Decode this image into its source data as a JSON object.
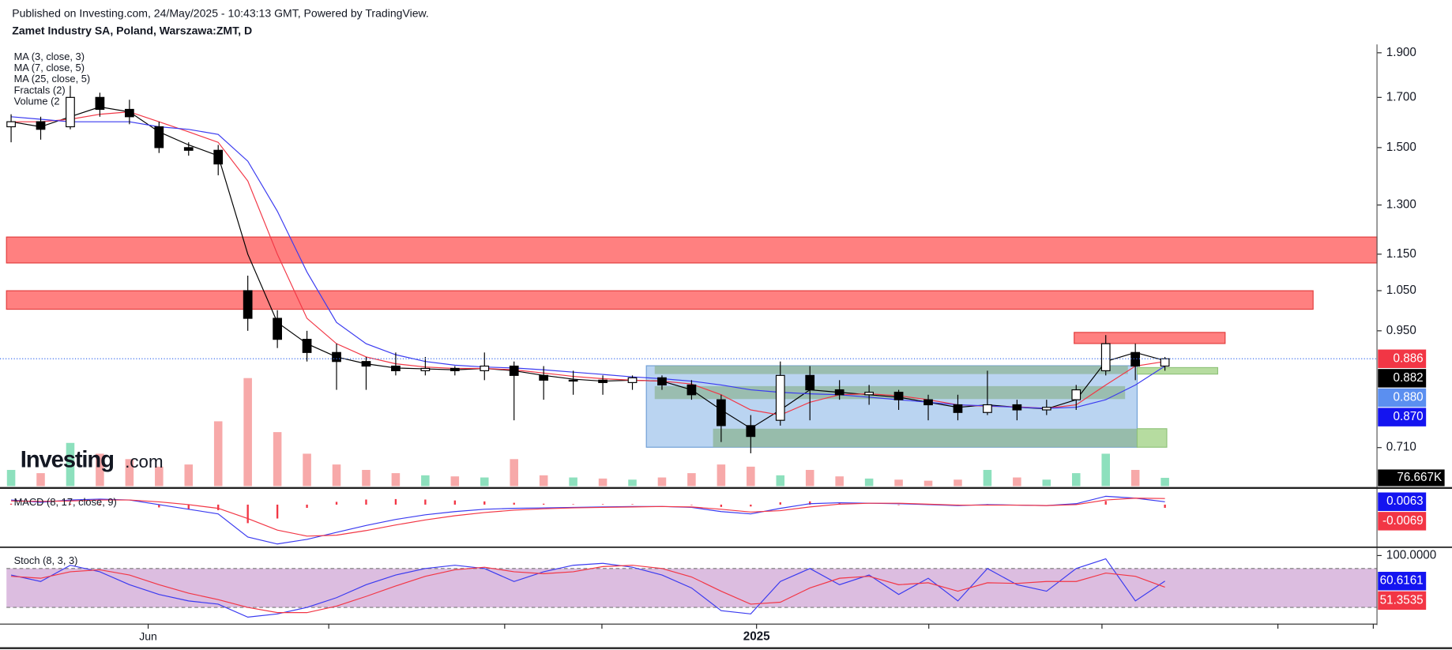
{
  "chart_data": {
    "type": "candlestick",
    "published": "Published on Investing.com, 24/May/2025 - 10:43:13 GMT, Powered by TradingView.",
    "title": "Zamet Industry SA, Poland, Warszawa:ZMT, D",
    "log_scale": true,
    "ylim": [
      0.645,
      1.931
    ],
    "yticks": [
      {
        "value": 0.71,
        "label": "0.710"
      },
      {
        "value": 0.95,
        "label": "0.950"
      },
      {
        "value": 1.05,
        "label": "1.050"
      },
      {
        "value": 1.15,
        "label": "1.150"
      },
      {
        "value": 1.3,
        "label": "1.300"
      },
      {
        "value": 1.5,
        "label": "1.500"
      },
      {
        "value": 1.7,
        "label": "1.700"
      },
      {
        "value": 1.9,
        "label": "1.900"
      }
    ],
    "x_labels": [
      "Jun",
      "2025"
    ],
    "up_color": "#ffffff",
    "down_color": "#000000",
    "ohlc": {
      "open": [
        1.58,
        1.6,
        1.58,
        1.7,
        1.65,
        1.58,
        1.5,
        1.49,
        1.05,
        0.98,
        0.93,
        0.9,
        0.88,
        0.87,
        0.86,
        0.865,
        0.86,
        0.87,
        0.85,
        0.84,
        0.84,
        0.835,
        0.845,
        0.83,
        0.8,
        0.75,
        0.76,
        0.85,
        0.82,
        0.81,
        0.815,
        0.8,
        0.79,
        0.775,
        0.79,
        0.78,
        0.8,
        0.86,
        0.9,
        0.87
      ],
      "high": [
        1.63,
        1.62,
        1.75,
        1.72,
        1.69,
        1.6,
        1.52,
        1.51,
        1.09,
        1.0,
        0.95,
        0.92,
        0.89,
        0.9,
        0.89,
        0.87,
        0.9,
        0.88,
        0.87,
        0.86,
        0.85,
        0.85,
        0.85,
        0.84,
        0.81,
        0.77,
        0.88,
        0.87,
        0.84,
        0.83,
        0.82,
        0.81,
        0.81,
        0.86,
        0.8,
        0.8,
        0.83,
        0.94,
        0.92,
        0.89
      ],
      "low": [
        1.52,
        1.53,
        1.57,
        1.62,
        1.59,
        1.48,
        1.47,
        1.4,
        0.95,
        0.91,
        0.88,
        0.82,
        0.82,
        0.85,
        0.85,
        0.85,
        0.84,
        0.76,
        0.8,
        0.81,
        0.81,
        0.82,
        0.82,
        0.8,
        0.72,
        0.7,
        0.75,
        0.76,
        0.8,
        0.79,
        0.78,
        0.76,
        0.76,
        0.77,
        0.76,
        0.77,
        0.78,
        0.85,
        0.84,
        0.86
      ],
      "close": [
        1.6,
        1.57,
        1.7,
        1.65,
        1.62,
        1.5,
        1.49,
        1.44,
        0.98,
        0.93,
        0.9,
        0.88,
        0.87,
        0.86,
        0.865,
        0.86,
        0.87,
        0.85,
        0.84,
        0.84,
        0.835,
        0.845,
        0.83,
        0.81,
        0.75,
        0.73,
        0.85,
        0.82,
        0.81,
        0.815,
        0.8,
        0.79,
        0.775,
        0.79,
        0.78,
        0.785,
        0.82,
        0.92,
        0.87,
        0.886
      ]
    },
    "ma_series": [
      {
        "name": "MA (3, close, 3)",
        "color": "#000000",
        "values": [
          1.6,
          1.58,
          1.62,
          1.66,
          1.64,
          1.56,
          1.51,
          1.47,
          1.15,
          0.97,
          0.92,
          0.89,
          0.875,
          0.866,
          0.864,
          0.862,
          0.865,
          0.86,
          0.85,
          0.842,
          0.838,
          0.84,
          0.838,
          0.82,
          0.78,
          0.745,
          0.78,
          0.82,
          0.815,
          0.81,
          0.805,
          0.795,
          0.785,
          0.79,
          0.785,
          0.782,
          0.8,
          0.88,
          0.9,
          0.882
        ]
      },
      {
        "name": "MA (7, close, 5)",
        "color": "#f23645",
        "values": [
          1.6,
          1.6,
          1.61,
          1.63,
          1.64,
          1.6,
          1.56,
          1.52,
          1.38,
          1.15,
          0.98,
          0.92,
          0.89,
          0.875,
          0.868,
          0.865,
          0.865,
          0.862,
          0.855,
          0.848,
          0.843,
          0.84,
          0.838,
          0.832,
          0.81,
          0.78,
          0.77,
          0.795,
          0.81,
          0.812,
          0.808,
          0.8,
          0.79,
          0.787,
          0.786,
          0.783,
          0.79,
          0.83,
          0.87,
          0.88
        ]
      },
      {
        "name": "MA (25, close, 5)",
        "color": "#3a3af0",
        "values": [
          1.62,
          1.61,
          1.6,
          1.6,
          1.6,
          1.58,
          1.57,
          1.55,
          1.45,
          1.28,
          1.1,
          0.97,
          0.92,
          0.895,
          0.88,
          0.872,
          0.868,
          0.866,
          0.862,
          0.857,
          0.852,
          0.847,
          0.843,
          0.838,
          0.83,
          0.82,
          0.815,
          0.812,
          0.81,
          0.805,
          0.8,
          0.795,
          0.79,
          0.788,
          0.785,
          0.783,
          0.785,
          0.8,
          0.83,
          0.87
        ]
      }
    ],
    "fractals_name": "Fractals (2)",
    "price_labels": [
      {
        "value": 0.886,
        "label": "0.886",
        "color": "#f23645"
      },
      {
        "value": 0.882,
        "label": "0.882",
        "color": "#000000"
      },
      {
        "value": 0.88,
        "label": "0.880",
        "color": "#5b8ff0"
      },
      {
        "value": 0.87,
        "label": "0.870",
        "color": "#1414f0"
      }
    ],
    "volume": {
      "name": "Volume (2",
      "vlim": [
        0,
        1500000
      ],
      "up_color": "#8de0bd",
      "down_color": "#f7a9a9",
      "values": [
        150000,
        120000,
        400000,
        300000,
        250000,
        180000,
        200000,
        600000,
        1000000,
        500000,
        300000,
        200000,
        150000,
        120000,
        100000,
        90000,
        80000,
        250000,
        100000,
        80000,
        70000,
        60000,
        80000,
        120000,
        200000,
        180000,
        100000,
        150000,
        90000,
        70000,
        60000,
        50000,
        60000,
        150000,
        80000,
        60000,
        120000,
        300000,
        150000,
        76667
      ],
      "last_label": {
        "value": 76667,
        "label": "76.667K"
      }
    },
    "macd": {
      "name": "MACD (8, 17, close, 9)",
      "mlim": [
        -0.09,
        0.03
      ],
      "macd_color": "#3a3af0",
      "signal_color": "#f23645",
      "macd": [
        0.01,
        0.005,
        0.01,
        0.012,
        0.01,
        0,
        -0.01,
        -0.02,
        -0.07,
        -0.085,
        -0.075,
        -0.06,
        -0.045,
        -0.032,
        -0.022,
        -0.015,
        -0.01,
        -0.008,
        -0.007,
        -0.006,
        -0.005,
        -0.004,
        -0.004,
        -0.006,
        -0.015,
        -0.02,
        -0.008,
        0.002,
        0.004,
        0.003,
        0.002,
        0,
        -0.002,
        0,
        -0.001,
        -0.002,
        0.002,
        0.018,
        0.014,
        0.0063
      ],
      "signal": [
        0.008,
        0.007,
        0.008,
        0.01,
        0.01,
        0.006,
        0,
        -0.008,
        -0.03,
        -0.055,
        -0.068,
        -0.066,
        -0.056,
        -0.044,
        -0.033,
        -0.024,
        -0.017,
        -0.012,
        -0.009,
        -0.007,
        -0.006,
        -0.005,
        -0.004,
        -0.005,
        -0.01,
        -0.016,
        -0.013,
        -0.005,
        0.001,
        0.003,
        0.003,
        0.001,
        -0.001,
        -0.001,
        -0.001,
        -0.002,
        0,
        0.01,
        0.014,
        0.0132
      ],
      "histogram": [
        0.002,
        -0.002,
        0.002,
        0.002,
        0,
        -0.006,
        -0.01,
        -0.012,
        -0.04,
        -0.03,
        -0.007,
        0.006,
        0.011,
        0.012,
        0.011,
        0.009,
        0.007,
        0.004,
        0.002,
        0.001,
        0.001,
        0.001,
        0,
        -0.001,
        -0.005,
        -0.004,
        0.005,
        0.007,
        0.003,
        0,
        -0.001,
        -0.001,
        -0.001,
        0.001,
        0,
        0,
        0.002,
        0.008,
        0,
        -0.0069
      ],
      "labels": [
        {
          "value": 0.0063,
          "label": "0.0063",
          "color": "#1414f0"
        },
        {
          "value": -0.0069,
          "label": "-0.0069",
          "color": "#f23645"
        }
      ]
    },
    "stoch": {
      "name": "Stoch (8, 3, 3)",
      "slim": [
        0,
        100
      ],
      "bands": [
        20,
        80
      ],
      "yticks": [
        {
          "value": 100,
          "label": "100.0000"
        }
      ],
      "k_color": "#3a3af0",
      "d_color": "#f23645",
      "k": [
        70,
        60,
        85,
        75,
        55,
        40,
        30,
        25,
        5,
        10,
        20,
        35,
        55,
        70,
        80,
        85,
        80,
        60,
        75,
        85,
        88,
        82,
        70,
        50,
        15,
        10,
        60,
        80,
        55,
        70,
        40,
        65,
        30,
        80,
        55,
        45,
        80,
        95,
        30,
        60.6161
      ],
      "d": [
        68,
        65,
        75,
        78,
        70,
        55,
        42,
        32,
        20,
        12,
        12,
        22,
        37,
        53,
        68,
        78,
        82,
        75,
        72,
        75,
        83,
        85,
        80,
        67,
        45,
        25,
        28,
        50,
        65,
        68,
        55,
        58,
        45,
        58,
        57,
        60,
        60,
        73,
        68,
        51.3535
      ],
      "labels": [
        {
          "value": 60.6161,
          "label": "60.6161",
          "color": "#1414f0"
        },
        {
          "value": 51.3535,
          "label": "51.3535",
          "color": "#f23645"
        }
      ]
    },
    "logo": {
      "brand": "Investing",
      "suffix": ".com"
    }
  }
}
